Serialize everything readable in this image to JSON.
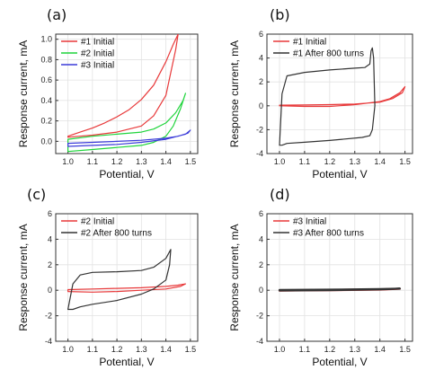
{
  "chart_data": [
    {
      "panel_label": "(a)",
      "type": "line",
      "xlabel": "Potential, V",
      "ylabel": "Response current, mA",
      "xlim": [
        0.95,
        1.53
      ],
      "ylim": [
        -0.12,
        1.05
      ],
      "xticks": [
        1.0,
        1.1,
        1.2,
        1.3,
        1.4,
        1.5
      ],
      "xtick_labels": [
        "1.0",
        "1.1",
        "1.2",
        "1.3",
        "1.4",
        "1.5"
      ],
      "yticks": [
        0.0,
        0.2,
        0.4,
        0.6,
        0.8,
        1.0
      ],
      "ytick_labels": [
        "0.0",
        "0.2",
        "0.4",
        "0.6",
        "0.8",
        "1.0"
      ],
      "grid": true,
      "legend_position": "top-left",
      "series": [
        {
          "name": "#1 Initial",
          "color": "#e8393a",
          "x": [
            1.0,
            1.05,
            1.1,
            1.15,
            1.2,
            1.25,
            1.3,
            1.35,
            1.4,
            1.43,
            1.45,
            1.44,
            1.4,
            1.35,
            1.3,
            1.2,
            1.1,
            1.0
          ],
          "y": [
            0.05,
            0.09,
            0.13,
            0.18,
            0.24,
            0.31,
            0.41,
            0.55,
            0.78,
            0.95,
            1.05,
            0.9,
            0.45,
            0.25,
            0.15,
            0.09,
            0.06,
            0.04
          ]
        },
        {
          "name": "#2 Initial",
          "color": "#1fd43b",
          "x": [
            1.0,
            1.1,
            1.2,
            1.3,
            1.35,
            1.4,
            1.44,
            1.47,
            1.48,
            1.46,
            1.43,
            1.4,
            1.35,
            1.3,
            1.2,
            1.1,
            1.0
          ],
          "y": [
            0.02,
            0.05,
            0.07,
            0.09,
            0.12,
            0.18,
            0.28,
            0.4,
            0.47,
            0.32,
            0.15,
            0.05,
            -0.01,
            -0.04,
            -0.06,
            -0.08,
            -0.1
          ]
        },
        {
          "name": "#3 Initial",
          "color": "#3b3bd9",
          "x": [
            1.0,
            1.1,
            1.2,
            1.3,
            1.4,
            1.45,
            1.49,
            1.5,
            1.48,
            1.4,
            1.3,
            1.2,
            1.1,
            1.0
          ],
          "y": [
            -0.02,
            -0.01,
            0.0,
            0.01,
            0.03,
            0.05,
            0.08,
            0.11,
            0.07,
            0.02,
            -0.01,
            -0.03,
            -0.04,
            -0.05
          ]
        }
      ]
    },
    {
      "panel_label": "(b)",
      "type": "line",
      "xlabel": "Potential, V",
      "ylabel": "Response current, mA",
      "xlim": [
        0.95,
        1.53
      ],
      "ylim": [
        -4,
        6
      ],
      "xticks": [
        1.0,
        1.1,
        1.2,
        1.3,
        1.4,
        1.5
      ],
      "xtick_labels": [
        "1.0",
        "1.1",
        "1.2",
        "1.3",
        "1.4",
        "1.5"
      ],
      "yticks": [
        -4,
        -2,
        0,
        2,
        4,
        6
      ],
      "ytick_labels": [
        "-4",
        "-2",
        "0",
        "2",
        "4",
        "6"
      ],
      "grid": true,
      "legend_position": "top-left",
      "series": [
        {
          "name": "#1 Initial",
          "color": "#e8393a",
          "x": [
            1.0,
            1.1,
            1.2,
            1.3,
            1.4,
            1.45,
            1.49,
            1.5,
            1.48,
            1.44,
            1.4,
            1.3,
            1.2,
            1.1,
            1.0
          ],
          "y": [
            0.05,
            0.07,
            0.1,
            0.15,
            0.3,
            0.6,
            1.1,
            1.6,
            1.1,
            0.6,
            0.35,
            0.1,
            -0.05,
            -0.05,
            0.0
          ]
        },
        {
          "name": "#1 After 800 turns",
          "color": "#333333",
          "x": [
            1.0,
            1.01,
            1.03,
            1.1,
            1.2,
            1.3,
            1.34,
            1.36,
            1.365,
            1.37,
            1.375,
            1.38,
            1.37,
            1.36,
            1.33,
            1.2,
            1.1,
            1.03,
            1.01,
            1.0
          ],
          "y": [
            -3.3,
            1.0,
            2.5,
            2.8,
            3.0,
            3.15,
            3.2,
            3.5,
            4.6,
            4.85,
            4.0,
            0.0,
            -2.0,
            -2.5,
            -2.65,
            -2.9,
            -3.05,
            -3.15,
            -3.3,
            -3.3
          ]
        }
      ]
    },
    {
      "panel_label": "(c)",
      "type": "line",
      "xlabel": "Potential, V",
      "ylabel": "Response current, mA",
      "xlim": [
        0.95,
        1.53
      ],
      "ylim": [
        -4,
        6
      ],
      "xticks": [
        1.0,
        1.1,
        1.2,
        1.3,
        1.4,
        1.5
      ],
      "xtick_labels": [
        "1.0",
        "1.1",
        "1.2",
        "1.3",
        "1.4",
        "1.5"
      ],
      "yticks": [
        -4,
        -2,
        0,
        2,
        4,
        6
      ],
      "ytick_labels": [
        "-4",
        "-2",
        "0",
        "2",
        "4",
        "6"
      ],
      "grid": true,
      "legend_position": "top-left",
      "series": [
        {
          "name": "#2 Initial",
          "color": "#e8393a",
          "x": [
            1.0,
            1.1,
            1.2,
            1.3,
            1.4,
            1.45,
            1.48,
            1.46,
            1.4,
            1.3,
            1.2,
            1.1,
            1.0
          ],
          "y": [
            0.05,
            0.1,
            0.15,
            0.2,
            0.3,
            0.4,
            0.5,
            0.3,
            0.1,
            0.0,
            -0.1,
            -0.15,
            -0.1
          ]
        },
        {
          "name": "#2 After 800 turns",
          "color": "#333333",
          "x": [
            1.0,
            1.02,
            1.05,
            1.1,
            1.2,
            1.3,
            1.35,
            1.4,
            1.42,
            1.415,
            1.4,
            1.35,
            1.3,
            1.2,
            1.1,
            1.05,
            1.02,
            1.0
          ],
          "y": [
            -1.5,
            0.5,
            1.2,
            1.4,
            1.45,
            1.55,
            1.8,
            2.5,
            3.2,
            2.0,
            0.8,
            0.1,
            -0.3,
            -0.8,
            -1.1,
            -1.3,
            -1.5,
            -1.5
          ]
        }
      ]
    },
    {
      "panel_label": "(d)",
      "type": "line",
      "xlabel": "Potential, V",
      "ylabel": "Response current, mA",
      "xlim": [
        0.95,
        1.53
      ],
      "ylim": [
        -4,
        6
      ],
      "xticks": [
        1.0,
        1.1,
        1.2,
        1.3,
        1.4,
        1.5
      ],
      "xtick_labels": [
        "1.0",
        "1.1",
        "1.2",
        "1.3",
        "1.4",
        "1.5"
      ],
      "yticks": [
        -4,
        -2,
        0,
        2,
        4,
        6
      ],
      "ytick_labels": [
        "-4",
        "-2",
        "0",
        "2",
        "4",
        "6"
      ],
      "grid": true,
      "legend_position": "top-left",
      "series": [
        {
          "name": "#3 Initial",
          "color": "#e8393a",
          "x": [
            1.0,
            1.2,
            1.4,
            1.48,
            1.4,
            1.2,
            1.0
          ],
          "y": [
            0.0,
            0.03,
            0.07,
            0.12,
            0.05,
            0.0,
            -0.03
          ]
        },
        {
          "name": "#3 After 800 turns",
          "color": "#333333",
          "x": [
            1.0,
            1.2,
            1.4,
            1.48,
            1.4,
            1.2,
            1.0
          ],
          "y": [
            0.02,
            0.05,
            0.09,
            0.13,
            0.06,
            0.01,
            -0.02
          ]
        }
      ]
    }
  ]
}
